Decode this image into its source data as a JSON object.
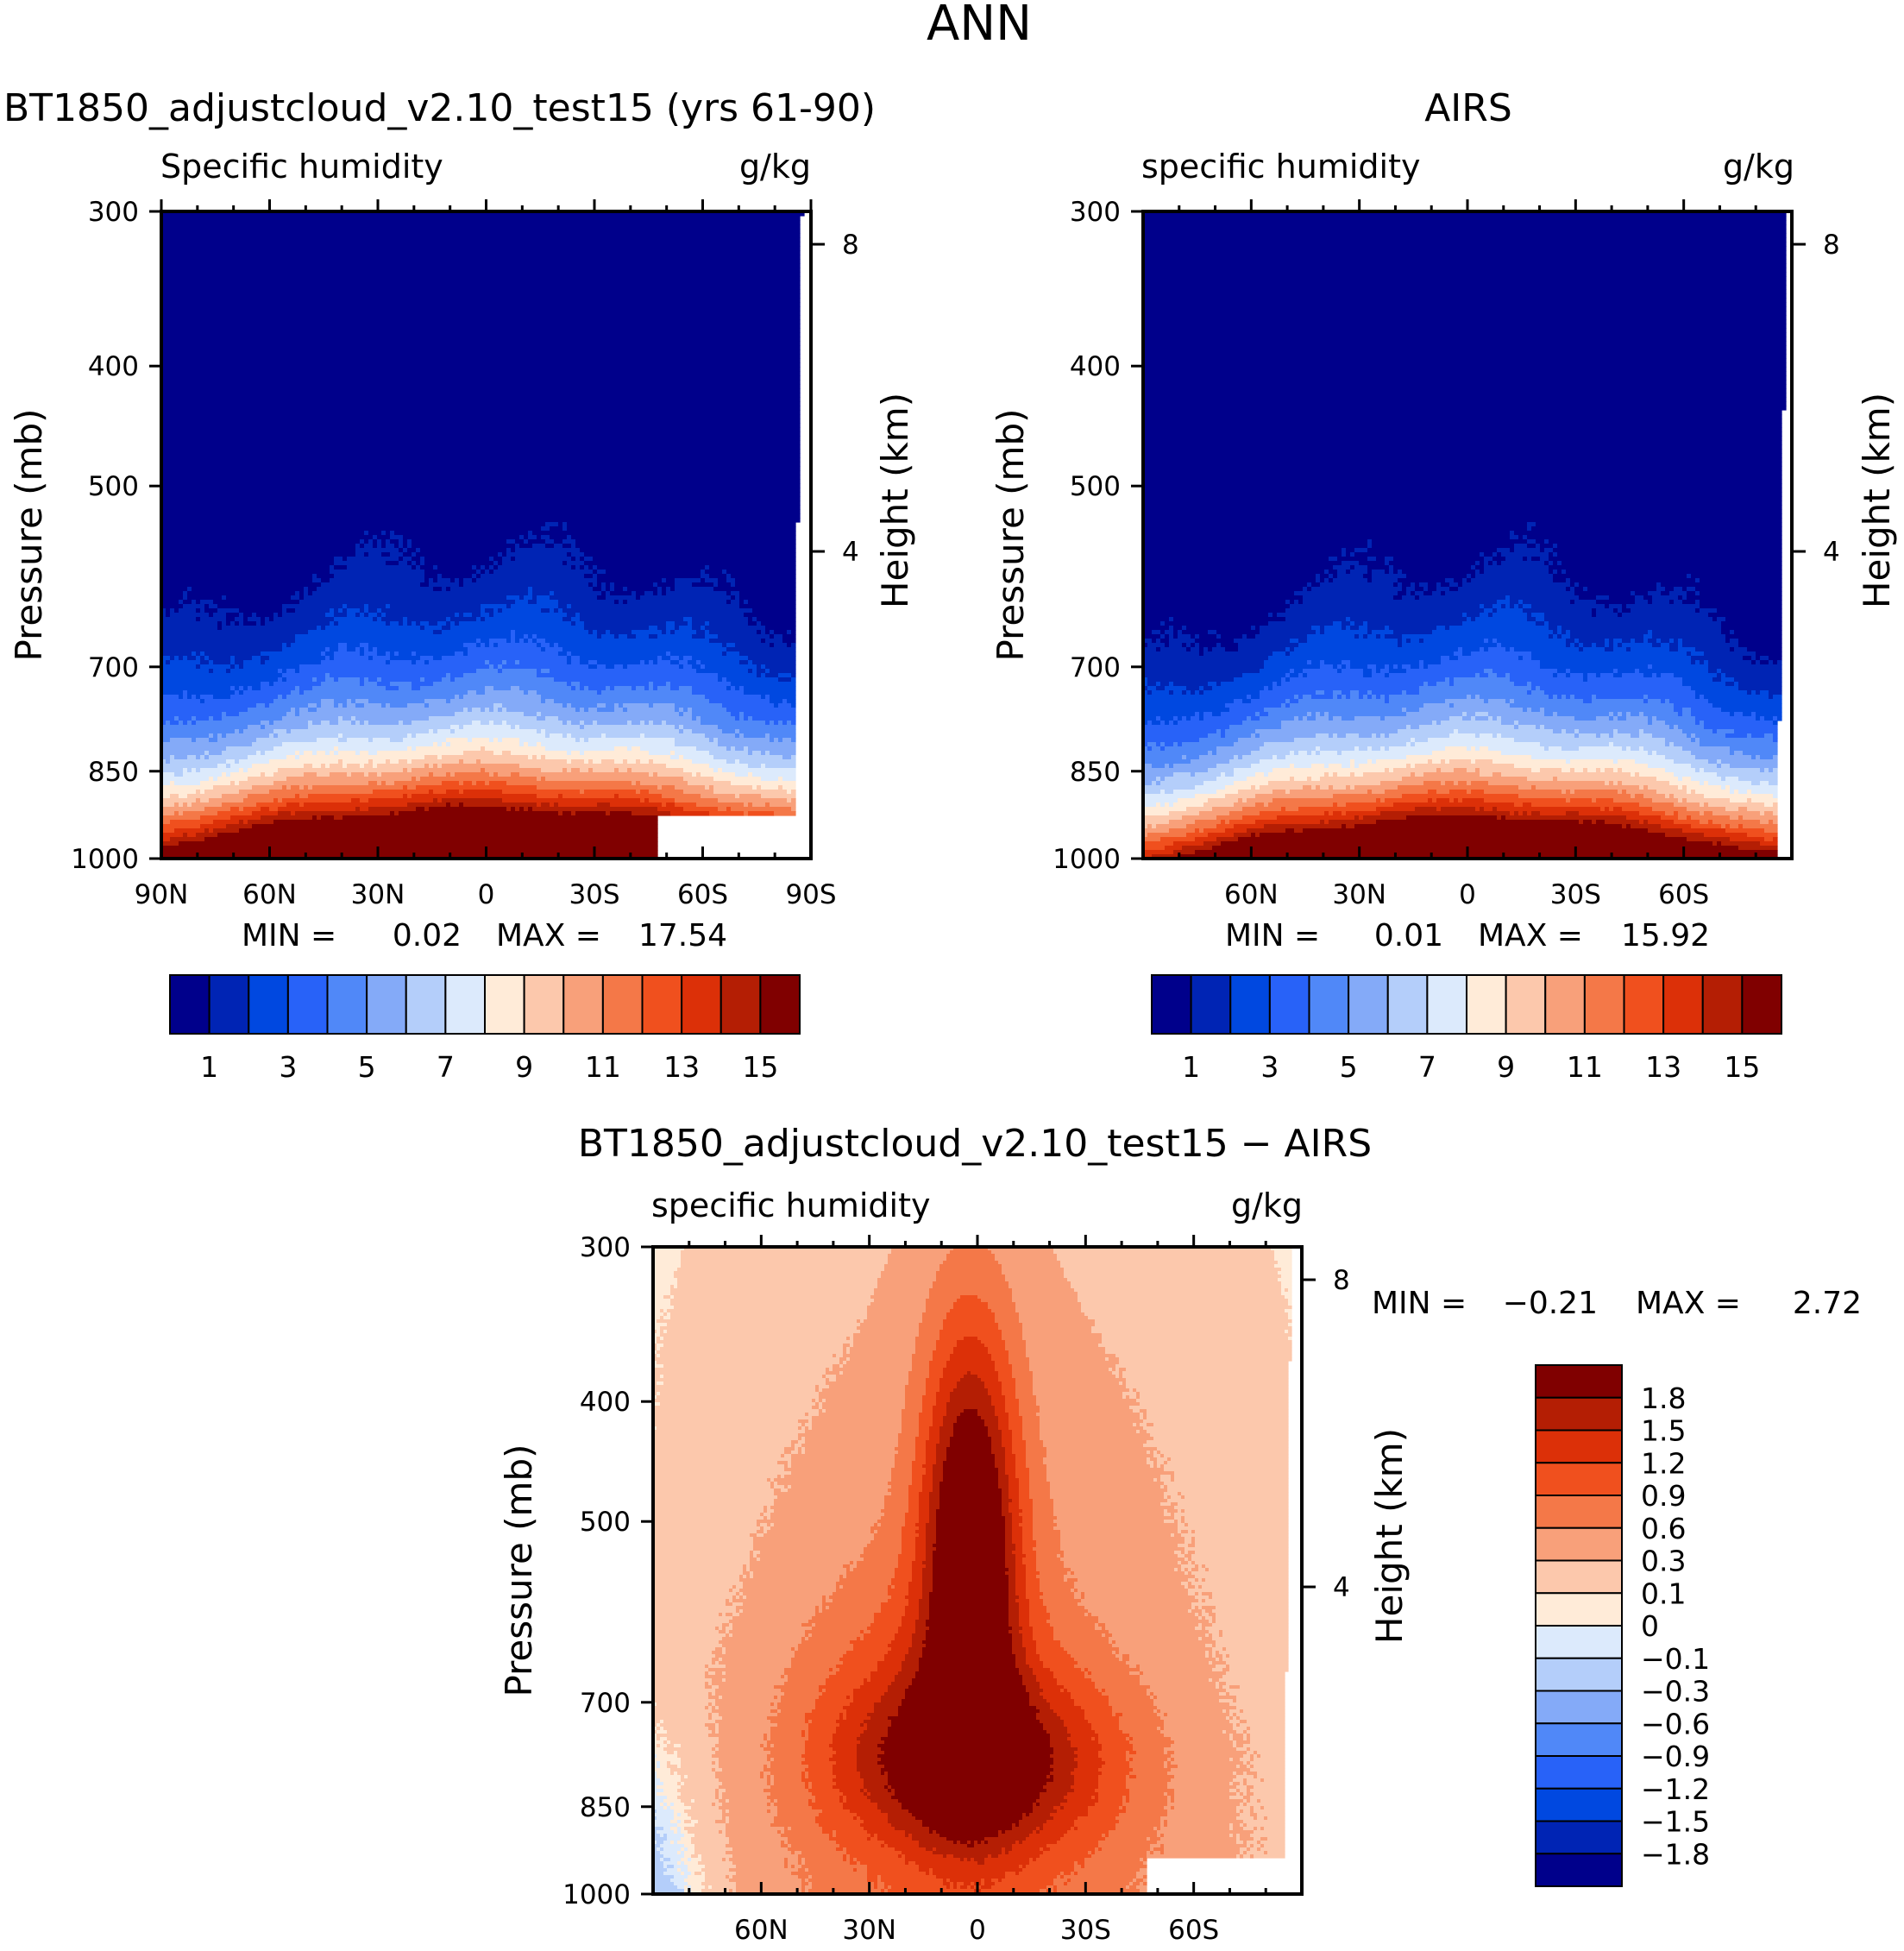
{
  "figure": {
    "title": "ANN"
  },
  "chart_data": [
    {
      "id": "model",
      "type": "heatmap",
      "title": "BT1850_adjustcloud_v2.10_test15 (yrs 61-90)",
      "left_label": "Specific humidity",
      "right_label": "g/kg",
      "ylabel": "Pressure (mb)",
      "ylabel_right": "Height (km)",
      "x_range": [
        90,
        -90
      ],
      "xticks": [
        {
          "v": 90,
          "label": "90N"
        },
        {
          "v": 60,
          "label": "60N"
        },
        {
          "v": 30,
          "label": "30N"
        },
        {
          "v": 0,
          "label": "0"
        },
        {
          "v": -30,
          "label": "30S"
        },
        {
          "v": -60,
          "label": "60S"
        },
        {
          "v": -90,
          "label": "90S"
        }
      ],
      "yticks": [
        300,
        400,
        500,
        700,
        850,
        1000
      ],
      "height_ticks": [
        {
          "km": 8,
          "label": "8"
        },
        {
          "km": 4,
          "label": "4"
        }
      ],
      "min_label": "MIN =",
      "min_value": "0.02",
      "max_label": "MAX =",
      "max_value": "17.54",
      "colorbar_labels": [
        "1",
        "3",
        "5",
        "7",
        "9",
        "11",
        "13",
        "15"
      ],
      "peak_value": 17.54,
      "peak_lat": 0,
      "base_ratio": 0.47,
      "width_top": 12,
      "width_bottom": 95,
      "exp": 1.0,
      "lat_cut": [
        -85,
        -87.5
      ],
      "missing": [
        {
          "lat": [
            -48,
            -90
          ],
          "p": [
            925,
            1000
          ]
        },
        {
          "lat": [
            -87,
            -90
          ],
          "p": [
            600,
            925
          ]
        }
      ]
    },
    {
      "id": "obs",
      "type": "heatmap",
      "title": "AIRS",
      "left_label": "specific humidity",
      "right_label": "g/kg",
      "ylabel": "Pressure (mb)",
      "ylabel_right": "Height (km)",
      "x_range": [
        90,
        -90
      ],
      "xticks": [
        {
          "v": 60,
          "label": "60N"
        },
        {
          "v": 30,
          "label": "30N"
        },
        {
          "v": 0,
          "label": "0"
        },
        {
          "v": -30,
          "label": "30S"
        },
        {
          "v": -60,
          "label": "60S"
        }
      ],
      "yticks": [
        300,
        400,
        500,
        700,
        850,
        1000
      ],
      "height_ticks": [
        {
          "km": 8,
          "label": "8"
        },
        {
          "km": 4,
          "label": "4"
        }
      ],
      "min_label": "MIN =",
      "min_value": "0.01",
      "max_label": "MAX =",
      "max_value": "15.92",
      "colorbar_labels": [
        "1",
        "3",
        "5",
        "7",
        "9",
        "11",
        "13",
        "15"
      ],
      "peak_value": 15.92,
      "peak_lat": -2,
      "base_ratio": 0.5,
      "width_top": 9,
      "width_bottom": 85,
      "exp": 1.05,
      "lat_cut": [
        -86,
        -88.5
      ],
      "missing": [
        {
          "lat": [
            -88.5,
            -90
          ],
          "p": [
            700,
            1000
          ]
        }
      ]
    },
    {
      "id": "diff",
      "type": "heatmap",
      "title": "BT1850_adjustcloud_v2.10_test15 − AIRS",
      "left_label": "specific humidity",
      "right_label": "g/kg",
      "ylabel": "Pressure (mb)",
      "ylabel_right": "Height (km)",
      "x_range": [
        90,
        -90
      ],
      "xticks": [
        {
          "v": 60,
          "label": "60N"
        },
        {
          "v": 30,
          "label": "30N"
        },
        {
          "v": 0,
          "label": "0"
        },
        {
          "v": -30,
          "label": "30S"
        },
        {
          "v": -60,
          "label": "60S"
        }
      ],
      "yticks": [
        300,
        400,
        500,
        700,
        850,
        1000
      ],
      "height_ticks": [
        {
          "km": 8,
          "label": "8"
        },
        {
          "km": 4,
          "label": "4"
        }
      ],
      "min_label": "MIN =",
      "min_value": "−0.21",
      "max_label": "MAX =",
      "max_value": "2.72",
      "levels": [
        -1.8,
        -1.5,
        -1.2,
        -0.9,
        -0.6,
        -0.3,
        -0.1,
        0,
        0.1,
        0.3,
        0.6,
        0.9,
        1.2,
        1.5,
        1.8
      ],
      "colorbar_labels": [
        "1.8",
        "1.5",
        "1.2",
        "0.9",
        "0.6",
        "0.3",
        "0.1",
        "0",
        "−0.1",
        "−0.3",
        "−0.6",
        "−0.9",
        "−1.2",
        "−1.5",
        "−1.8"
      ],
      "lat_cut": [
        -85,
        -87
      ],
      "missing": [
        {
          "lat": [
            -47,
            -90
          ],
          "p": [
            935,
            1000
          ]
        }
      ]
    }
  ],
  "palette": [
    "#00008B",
    "#0024B4",
    "#0048E0",
    "#2862F8",
    "#5088F8",
    "#84AAF8",
    "#B4CEFA",
    "#DCEAFC",
    "#FFEBD8",
    "#FCC8AC",
    "#F8A07A",
    "#F47848",
    "#F0501E",
    "#DC3008",
    "#B41E04",
    "#800000"
  ],
  "levels_full": [
    1,
    2,
    3,
    4,
    5,
    6,
    7,
    8,
    9,
    10,
    11,
    12,
    13,
    14,
    15
  ]
}
